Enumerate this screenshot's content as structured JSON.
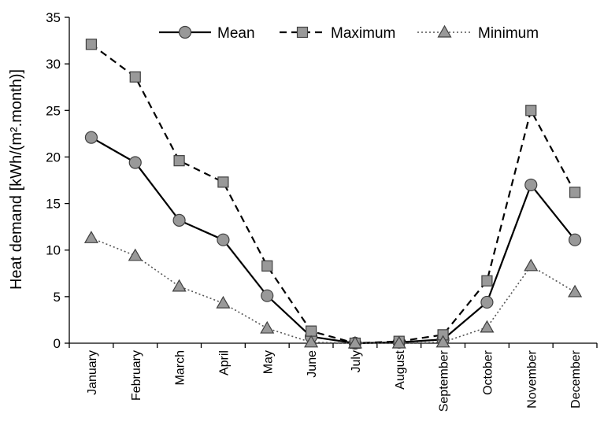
{
  "chart_data": {
    "type": "line",
    "categories": [
      "January",
      "February",
      "March",
      "April",
      "May",
      "June",
      "July",
      "August",
      "September",
      "October",
      "November",
      "December"
    ],
    "series": [
      {
        "name": "Mean",
        "marker": "circle",
        "dash": "solid",
        "values": [
          22.1,
          19.4,
          13.2,
          11.1,
          5.1,
          0.7,
          0.0,
          0.1,
          0.4,
          4.4,
          17.0,
          11.1
        ]
      },
      {
        "name": "Maximum",
        "marker": "square",
        "dash": "dashed",
        "values": [
          32.1,
          28.6,
          19.6,
          17.3,
          8.3,
          1.3,
          0.0,
          0.2,
          0.9,
          6.7,
          25.0,
          16.2
        ]
      },
      {
        "name": "Minimum",
        "marker": "triangle",
        "dash": "dotted",
        "values": [
          11.3,
          9.4,
          6.1,
          4.3,
          1.6,
          0.1,
          0.0,
          0.0,
          0.1,
          1.7,
          8.3,
          5.5
        ]
      }
    ],
    "ylabel": "Heat demand [kWh/(m².month)]",
    "ylim": [
      0,
      35
    ],
    "yticks": [
      0,
      5,
      10,
      15,
      20,
      25,
      30,
      35
    ],
    "grid": false,
    "legend_position": "top"
  },
  "colors": {
    "line": "#000000",
    "marker_fill": "#999999",
    "marker_stroke": "#404040"
  }
}
